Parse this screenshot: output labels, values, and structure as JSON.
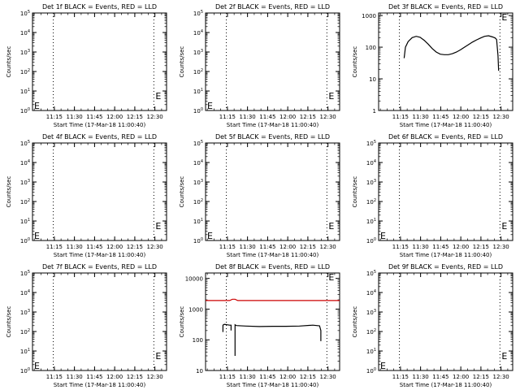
{
  "chart_data": [
    {
      "type": "line",
      "title": "Det 1f BLACK = Events, RED = LLD",
      "xlabel": "Start Time (17-Mar-18 11:00:40)",
      "ylabel": "Counts/sec",
      "x_ticks": [
        "11:15",
        "11:30",
        "11:45",
        "12:00",
        "12:15",
        "12:30"
      ],
      "y_ticks": [
        "10^0",
        "10^1",
        "10^2",
        "10^3",
        "10^4",
        "10^5"
      ],
      "y_scale": "log",
      "ylim": [
        1,
        100000
      ],
      "dotted_lines_x_min": [
        15.5,
        90.5
      ],
      "markers": [
        "E",
        "E"
      ],
      "series": []
    },
    {
      "type": "line",
      "title": "Det 2f BLACK = Events, RED = LLD",
      "xlabel": "Start Time (17-Mar-18 11:00:40)",
      "ylabel": "Counts/sec",
      "x_ticks": [
        "11:15",
        "11:30",
        "11:45",
        "12:00",
        "12:15",
        "12:30"
      ],
      "y_ticks": [
        "10^0",
        "10^1",
        "10^2",
        "10^3",
        "10^4",
        "10^5"
      ],
      "y_scale": "log",
      "ylim": [
        1,
        100000
      ],
      "dotted_lines_x_min": [
        15.5,
        90.5
      ],
      "markers": [
        "E",
        "E"
      ],
      "series": []
    },
    {
      "type": "line",
      "title": "Det 3f BLACK = Events, RED = LLD",
      "xlabel": "Start Time (17-Mar-18 11:00:40)",
      "ylabel": "Counts/sec",
      "x_ticks": [
        "11:15",
        "11:30",
        "11:45",
        "12:00",
        "12:15",
        "12:30"
      ],
      "y_ticks": [
        "1",
        "10",
        "100",
        "1000"
      ],
      "y_scale": "log",
      "ylim": [
        1,
        1200
      ],
      "dotted_lines_x_min": [
        15.5,
        90.5
      ],
      "markers": [
        "E"
      ],
      "series": [
        {
          "color": "#000000",
          "x_min": [
            19,
            20,
            22,
            25,
            28,
            31,
            34,
            37,
            40,
            43,
            46,
            49,
            52,
            55,
            58,
            61,
            64,
            67,
            70,
            73,
            76,
            79,
            82,
            85,
            87,
            88,
            89,
            89.5
          ],
          "y": [
            45,
            100,
            150,
            200,
            220,
            205,
            165,
            125,
            90,
            70,
            60,
            58,
            58,
            62,
            70,
            82,
            100,
            120,
            145,
            170,
            195,
            220,
            230,
            210,
            195,
            175,
            55,
            18
          ]
        }
      ]
    },
    {
      "type": "line",
      "title": "Det 4f BLACK = Events, RED = LLD",
      "xlabel": "Start Time (17-Mar-18 11:00:40)",
      "ylabel": "Counts/sec",
      "x_ticks": [
        "11:15",
        "11:30",
        "11:45",
        "12:00",
        "12:15",
        "12:30"
      ],
      "y_ticks": [
        "10^0",
        "10^1",
        "10^2",
        "10^3",
        "10^4",
        "10^5"
      ],
      "y_scale": "log",
      "ylim": [
        1,
        100000
      ],
      "dotted_lines_x_min": [
        15.5,
        90.5
      ],
      "markers": [
        "E",
        "E"
      ],
      "series": []
    },
    {
      "type": "line",
      "title": "Det 5f BLACK = Events, RED = LLD",
      "xlabel": "Start Time (17-Mar-18 11:00:40)",
      "ylabel": "Counts/sec",
      "x_ticks": [
        "11:15",
        "11:30",
        "11:45",
        "12:00",
        "12:15",
        "12:30"
      ],
      "y_ticks": [
        "10^0",
        "10^1",
        "10^2",
        "10^3",
        "10^4",
        "10^5"
      ],
      "y_scale": "log",
      "ylim": [
        1,
        100000
      ],
      "dotted_lines_x_min": [
        15.5,
        90.5
      ],
      "markers": [
        "E",
        "E"
      ],
      "series": []
    },
    {
      "type": "line",
      "title": "Det 6f BLACK = Events, RED = LLD",
      "xlabel": "Start Time (17-Mar-18 11:00:40)",
      "ylabel": "Counts/sec",
      "x_ticks": [
        "11:15",
        "11:30",
        "11:45",
        "12:00",
        "12:15",
        "12:30"
      ],
      "y_ticks": [
        "10^0",
        "10^1",
        "10^2",
        "10^3",
        "10^4",
        "10^5"
      ],
      "y_scale": "log",
      "ylim": [
        1,
        100000
      ],
      "dotted_lines_x_min": [
        15.5,
        90.5
      ],
      "markers": [
        "E",
        "E"
      ],
      "series": []
    },
    {
      "type": "line",
      "title": "Det 7f BLACK = Events, RED = LLD",
      "xlabel": "Start Time (17-Mar-18 11:00:40)",
      "ylabel": "Counts/sec",
      "x_ticks": [
        "11:15",
        "11:30",
        "11:45",
        "12:00",
        "12:15",
        "12:30"
      ],
      "y_ticks": [
        "10^0",
        "10^1",
        "10^2",
        "10^3",
        "10^4",
        "10^5"
      ],
      "y_scale": "log",
      "ylim": [
        1,
        100000
      ],
      "dotted_lines_x_min": [
        15.5,
        90.5
      ],
      "markers": [
        "E",
        "E"
      ],
      "series": []
    },
    {
      "type": "line",
      "title": "Det 8f BLACK = Events, RED = LLD",
      "xlabel": "Start Time (17-Mar-18 11:00:40)",
      "ylabel": "Counts/sec",
      "x_ticks": [
        "11:15",
        "11:30",
        "11:45",
        "12:00",
        "12:15",
        "12:30"
      ],
      "y_ticks": [
        "10",
        "100",
        "1000",
        "10000"
      ],
      "y_scale": "log",
      "ylim": [
        10,
        15000
      ],
      "dotted_lines_x_min": [
        15.5,
        90.5
      ],
      "markers": [
        "E"
      ],
      "series": [
        {
          "color": "#cc0000",
          "x_min": [
            0,
            14,
            18,
            20,
            22,
            24,
            40,
            60,
            80,
            100
          ],
          "y": [
            1900,
            1900,
            1900,
            2100,
            2100,
            1900,
            1900,
            1900,
            1900,
            1900
          ]
        },
        {
          "color": "#000000",
          "x_min": [
            13,
            13,
            14,
            16,
            18,
            19,
            19
          ],
          "y": [
            180,
            300,
            320,
            310,
            300,
            300,
            200
          ]
        },
        {
          "color": "#000000",
          "x_min": [
            22,
            22,
            23,
            30,
            40,
            50,
            60,
            70,
            80,
            85,
            86,
            86
          ],
          "y": [
            30,
            310,
            290,
            280,
            270,
            275,
            275,
            280,
            300,
            285,
            200,
            90
          ]
        }
      ]
    },
    {
      "type": "line",
      "title": "Det 9f BLACK = Events, RED = LLD",
      "xlabel": "Start Time (17-Mar-18 11:00:40)",
      "ylabel": "Counts/sec",
      "x_ticks": [
        "11:15",
        "11:30",
        "11:45",
        "12:00",
        "12:15",
        "12:30"
      ],
      "y_ticks": [
        "10^0",
        "10^1",
        "10^2",
        "10^3",
        "10^4",
        "10^5"
      ],
      "y_scale": "log",
      "ylim": [
        1,
        100000
      ],
      "dotted_lines_x_min": [
        15.5,
        90.5
      ],
      "markers": [
        "E",
        "E"
      ],
      "series": []
    }
  ]
}
